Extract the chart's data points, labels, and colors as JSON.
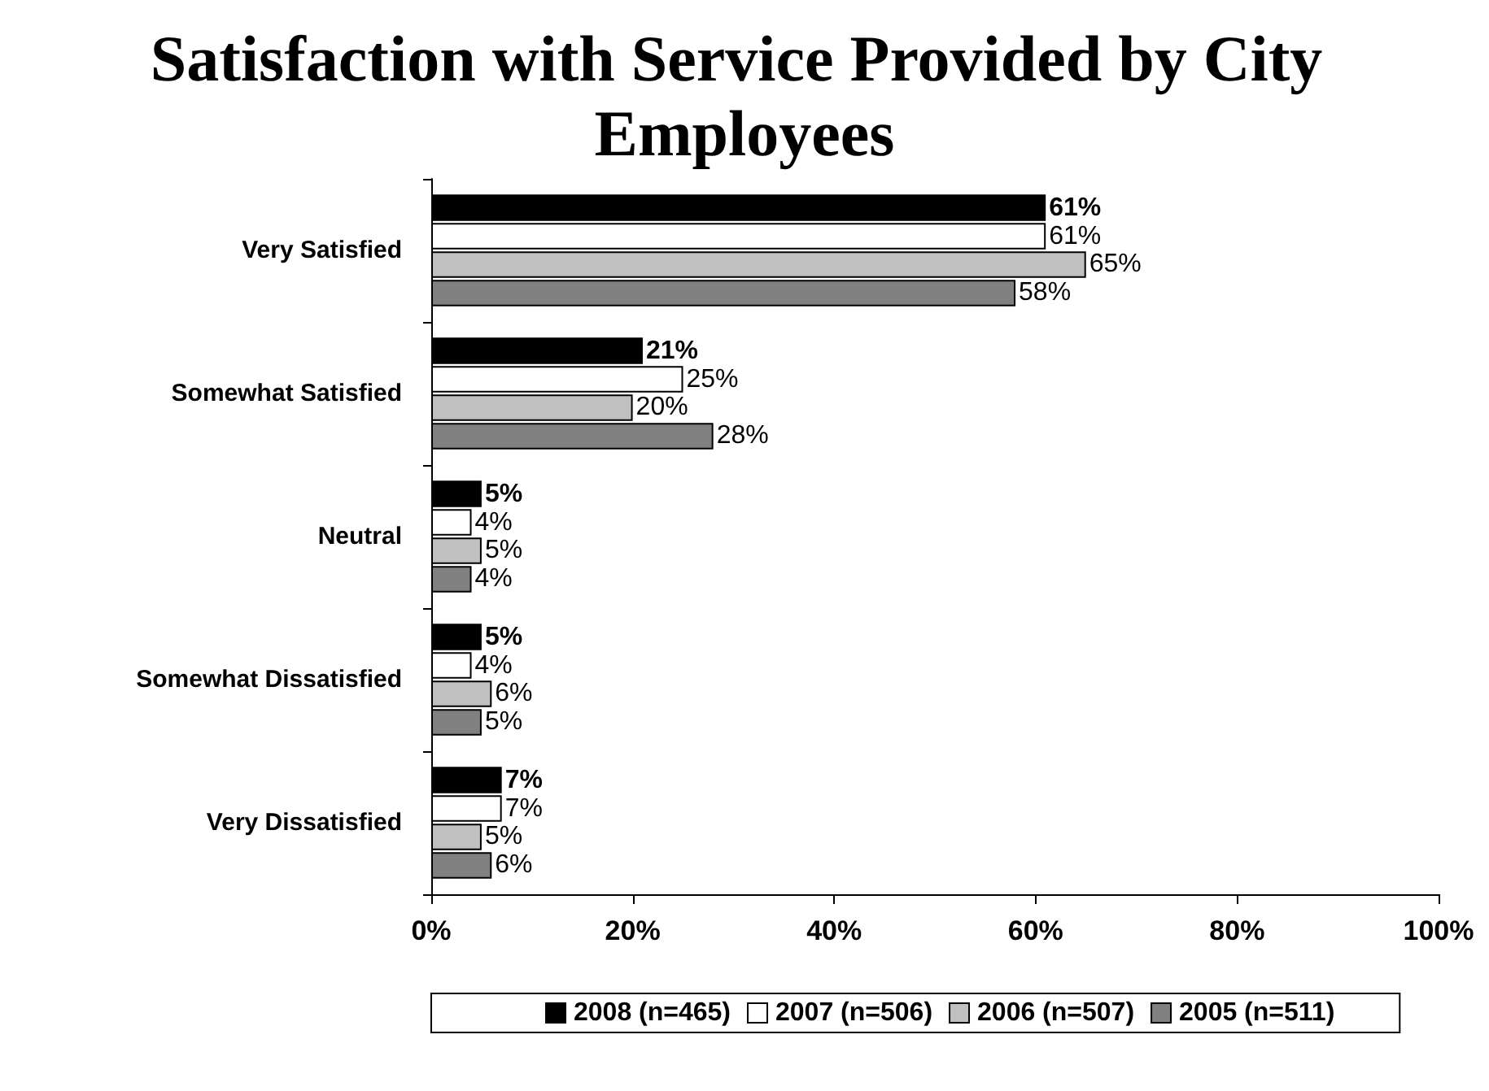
{
  "chart_data": {
    "type": "bar",
    "orientation": "horizontal",
    "title": "Satisfaction with Service Provided by City Employees",
    "categories": [
      "Very Satisfied",
      "Somewhat Satisfied",
      "Neutral",
      "Somewhat Dissatisfied",
      "Very Dissatisfied"
    ],
    "series": [
      {
        "name": "2008 (n=465)",
        "color": "#000000",
        "values": [
          61,
          21,
          5,
          5,
          7
        ],
        "value_labels": [
          "61%",
          "21%",
          "5%",
          "5%",
          "7%"
        ]
      },
      {
        "name": "2007 (n=506)",
        "color": "#ffffff",
        "values": [
          61,
          25,
          4,
          4,
          7
        ],
        "value_labels": [
          "61%",
          "25%",
          "4%",
          "4%",
          "7%"
        ]
      },
      {
        "name": "2006 (n=507)",
        "color": "#c0c0c0",
        "values": [
          65,
          20,
          5,
          6,
          5
        ],
        "value_labels": [
          "65%",
          "20%",
          "5%",
          "6%",
          "5%"
        ]
      },
      {
        "name": "2005 (n=511)",
        "color": "#808080",
        "values": [
          58,
          28,
          4,
          5,
          6
        ],
        "value_labels": [
          "58%",
          "28%",
          "4%",
          "5%",
          "6%"
        ]
      }
    ],
    "xlim": [
      0,
      100
    ],
    "xticks": [
      {
        "value": 0,
        "label": "0%"
      },
      {
        "value": 20,
        "label": "20%"
      },
      {
        "value": 40,
        "label": "40%"
      },
      {
        "value": 60,
        "label": "60%"
      },
      {
        "value": 80,
        "label": "80%"
      },
      {
        "value": 100,
        "label": "100%"
      }
    ],
    "legend": "bottom",
    "grid": false
  }
}
